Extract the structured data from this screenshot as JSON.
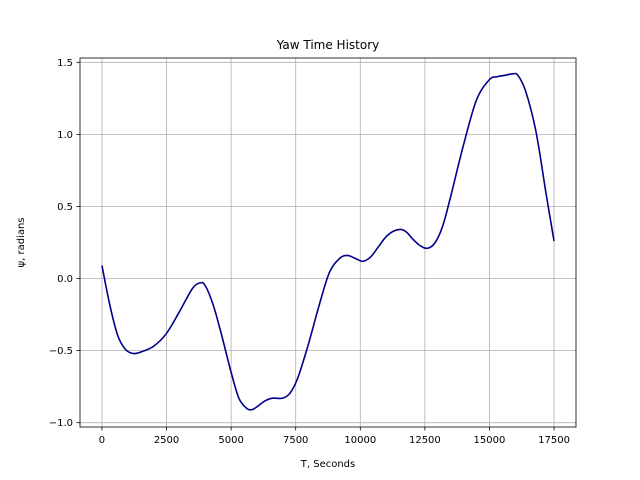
{
  "chart_data": {
    "type": "line",
    "title": "Yaw Time History",
    "xlabel": "T, Seconds",
    "ylabel": "ψ, radians",
    "xlim": [
      -850,
      18350
    ],
    "ylim": [
      -1.03,
      1.53
    ],
    "grid": true,
    "xticks": [
      0,
      2500,
      5000,
      7500,
      10000,
      12500,
      15000,
      17500
    ],
    "xtick_labels": [
      "0",
      "2500",
      "5000",
      "7500",
      "10000",
      "12500",
      "15000",
      "17500"
    ],
    "yticks": [
      -1.0,
      -0.5,
      0.0,
      0.5,
      1.0,
      1.5
    ],
    "ytick_labels": [
      "−1.0",
      "−0.5",
      "0.0",
      "0.5",
      "1.0",
      "1.5"
    ],
    "series": [
      {
        "color": "#00008b",
        "x": [
          0,
          300,
          600,
          900,
          1200,
          1500,
          2000,
          2500,
          3000,
          3500,
          3800,
          4000,
          4300,
          4600,
          5000,
          5300,
          5600,
          5800,
          6000,
          6300,
          6600,
          7000,
          7300,
          7600,
          8000,
          8400,
          8800,
          9200,
          9500,
          9800,
          10100,
          10400,
          10700,
          11000,
          11300,
          11600,
          11800,
          12000,
          12300,
          12600,
          12900,
          13200,
          13500,
          14000,
          14500,
          15000,
          15300,
          15600,
          15900,
          16100,
          16400,
          16800,
          17200,
          17500
        ],
        "y": [
          0.09,
          -0.18,
          -0.39,
          -0.49,
          -0.52,
          -0.51,
          -0.47,
          -0.38,
          -0.23,
          -0.07,
          -0.03,
          -0.05,
          -0.18,
          -0.37,
          -0.65,
          -0.83,
          -0.9,
          -0.91,
          -0.89,
          -0.85,
          -0.83,
          -0.83,
          -0.79,
          -0.68,
          -0.45,
          -0.19,
          0.04,
          0.14,
          0.16,
          0.14,
          0.12,
          0.15,
          0.22,
          0.29,
          0.33,
          0.34,
          0.32,
          0.28,
          0.23,
          0.21,
          0.25,
          0.37,
          0.57,
          0.93,
          1.24,
          1.38,
          1.4,
          1.41,
          1.42,
          1.41,
          1.3,
          1.02,
          0.58,
          0.26
        ]
      }
    ]
  }
}
